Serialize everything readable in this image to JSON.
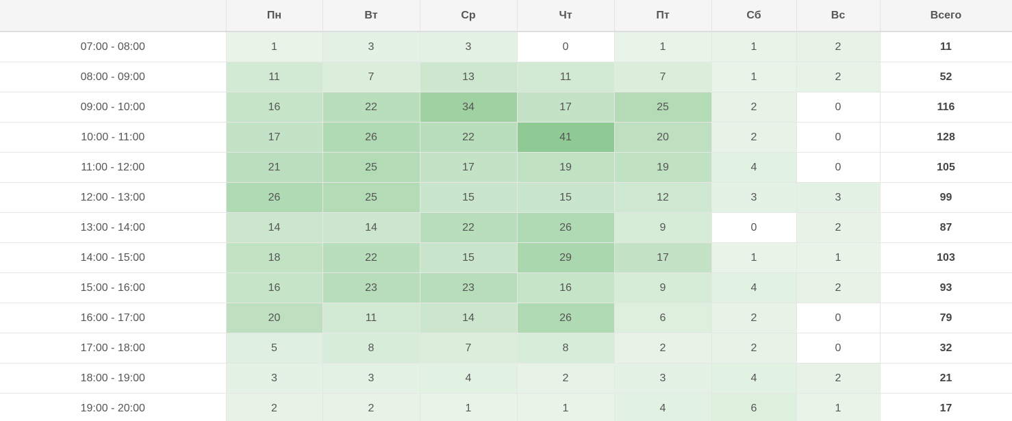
{
  "table": {
    "header": [
      "",
      "Пн",
      "Вт",
      "Ср",
      "Чт",
      "Пт",
      "Сб",
      "Вс",
      "Всего"
    ],
    "rows": [
      [
        "07:00 - 08:00",
        1,
        3,
        3,
        0,
        1,
        1,
        2,
        11
      ],
      [
        "08:00 - 09:00",
        11,
        7,
        13,
        11,
        7,
        1,
        2,
        52
      ],
      [
        "09:00 - 10:00",
        16,
        22,
        34,
        17,
        25,
        2,
        0,
        116
      ],
      [
        "10:00 - 11:00",
        17,
        26,
        22,
        41,
        20,
        2,
        0,
        128
      ],
      [
        "11:00 - 12:00",
        21,
        25,
        17,
        19,
        19,
        4,
        0,
        105
      ],
      [
        "12:00 - 13:00",
        26,
        25,
        15,
        15,
        12,
        3,
        3,
        99
      ],
      [
        "13:00 - 14:00",
        14,
        14,
        22,
        26,
        9,
        0,
        2,
        87
      ],
      [
        "14:00 - 15:00",
        18,
        22,
        15,
        29,
        17,
        1,
        1,
        103
      ],
      [
        "15:00 - 16:00",
        16,
        23,
        23,
        16,
        9,
        4,
        2,
        93
      ],
      [
        "16:00 - 17:00",
        20,
        11,
        14,
        26,
        6,
        2,
        0,
        79
      ],
      [
        "17:00 - 18:00",
        5,
        8,
        7,
        8,
        2,
        2,
        0,
        32
      ],
      [
        "18:00 - 19:00",
        3,
        3,
        4,
        2,
        3,
        4,
        2,
        21
      ],
      [
        "19:00 - 20:00",
        2,
        2,
        1,
        1,
        4,
        6,
        1,
        17
      ]
    ]
  }
}
